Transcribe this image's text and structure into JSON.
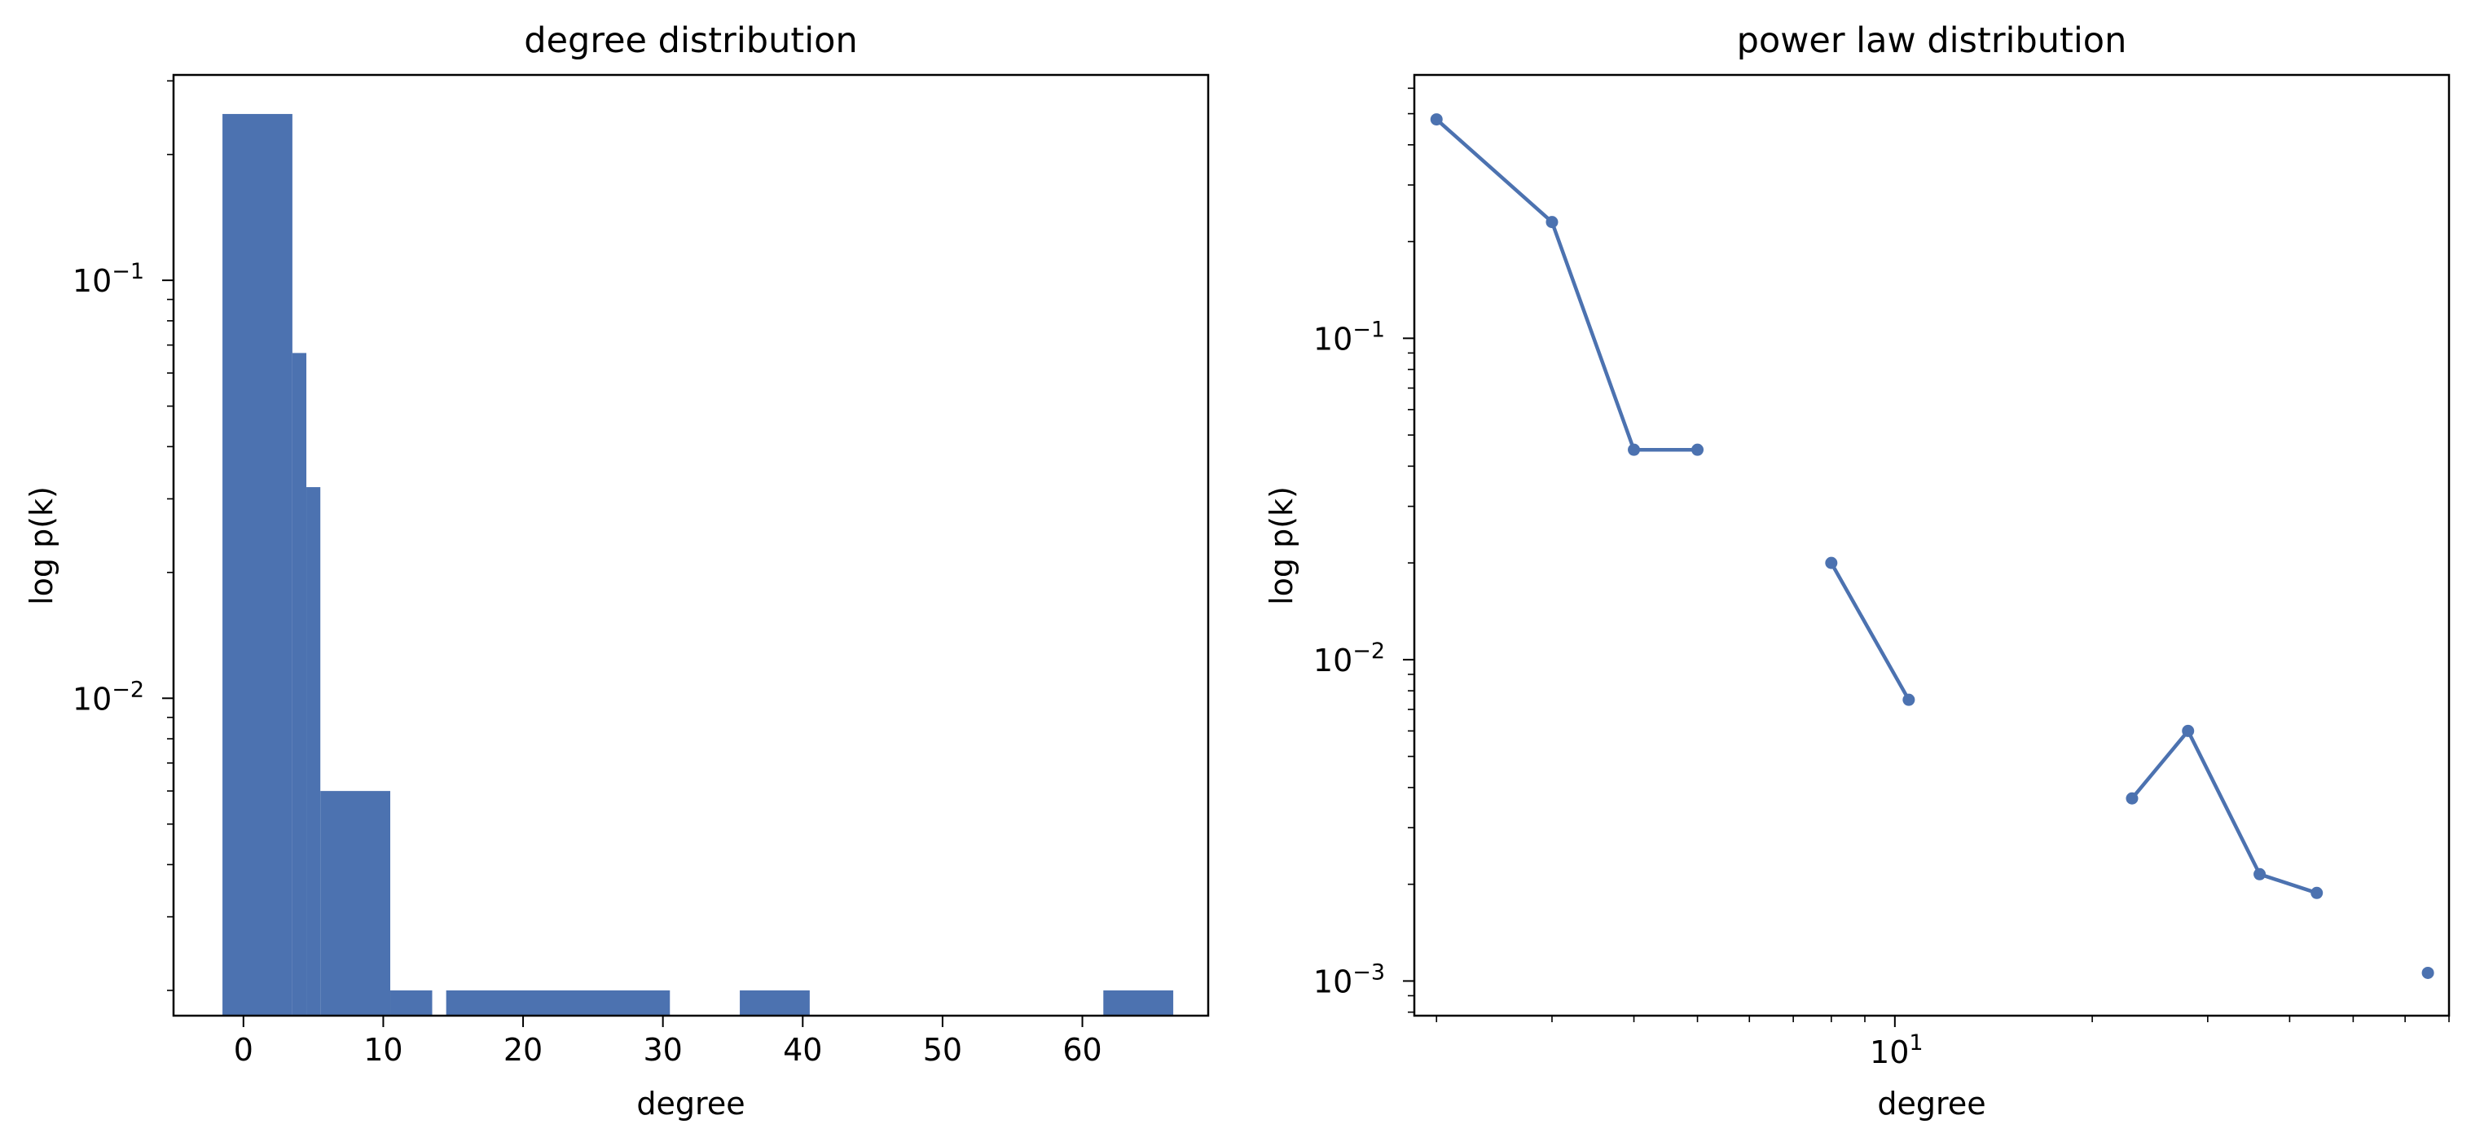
{
  "chart_data": [
    {
      "type": "bar",
      "title": "degree distribution",
      "xlabel": "degree",
      "ylabel": "log p(k)",
      "yscale": "log",
      "xlim": [
        -5,
        69
      ],
      "ylim": [
        0.00174,
        0.31
      ],
      "xticks": [
        "0",
        "10",
        "20",
        "30",
        "40",
        "50",
        "60"
      ],
      "yticks": [
        {
          "base": "10",
          "exp": "−1"
        },
        {
          "base": "10",
          "exp": "−2"
        }
      ],
      "bars": [
        {
          "x0": -1.5,
          "x1": 3.5,
          "value": 0.25
        },
        {
          "x0": 3.5,
          "x1": 4.5,
          "value": 0.067
        },
        {
          "x0": 4.5,
          "x1": 5.5,
          "value": 0.032
        },
        {
          "x0": 5.5,
          "x1": 10.5,
          "value": 0.006
        },
        {
          "x0": 10.5,
          "x1": 13.5,
          "value": 0.002
        },
        {
          "x0": 14.5,
          "x1": 30.5,
          "value": 0.002
        },
        {
          "x0": 35.5,
          "x1": 40.5,
          "value": 0.002
        },
        {
          "x0": 61.5,
          "x1": 66.5,
          "value": 0.002
        }
      ],
      "color": "#4c72b0",
      "grid": false
    },
    {
      "type": "line",
      "title": "power law distribution",
      "xlabel": "degree",
      "ylabel": "log p(k)",
      "xscale": "log",
      "yscale": "log",
      "xlim": [
        1.85,
        70
      ],
      "ylim": [
        0.00078,
        0.66
      ],
      "xticks": [
        {
          "base": "10",
          "exp": "1"
        }
      ],
      "yticks": [
        {
          "base": "10",
          "exp": "−1"
        },
        {
          "base": "10",
          "exp": "−2"
        },
        {
          "base": "10",
          "exp": "−3"
        }
      ],
      "series": [
        {
          "points": [
            [
              2,
              0.48
            ],
            [
              3,
              0.23
            ],
            [
              4,
              0.045
            ],
            [
              5,
              0.045
            ],
            null,
            [
              8,
              0.02
            ],
            [
              10.5,
              0.0075
            ],
            null,
            [
              23,
              0.0037
            ],
            [
              28,
              0.006
            ],
            [
              36,
              0.00215
            ],
            [
              44,
              0.00188
            ],
            null,
            [
              65,
              0.00106
            ]
          ]
        }
      ],
      "color": "#4c72b0",
      "grid": false
    }
  ]
}
